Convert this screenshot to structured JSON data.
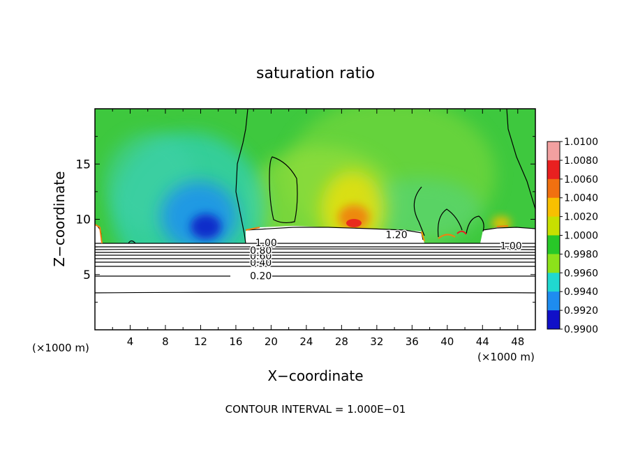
{
  "chart_data": {
    "type": "heatmap",
    "title": "saturation ratio",
    "xlabel": "X−coordinate",
    "ylabel": "Z−coordinate",
    "x_unit": "(×1000 m)",
    "z_unit": "(×1000 m)",
    "xlim": [
      0,
      50
    ],
    "ylim": [
      0,
      20
    ],
    "x_ticks": [
      "4",
      "8",
      "12",
      "16",
      "20",
      "24",
      "28",
      "32",
      "36",
      "40",
      "44",
      "48"
    ],
    "y_ticks": [
      "5",
      "10",
      "15"
    ],
    "footer": "CONTOUR INTERVAL = 1.000E−01",
    "contour_labels": [
      {
        "text": "0.20",
        "x": 17.6,
        "z": 4.9
      },
      {
        "text": "0.40",
        "x": 17.6,
        "z": 6.1
      },
      {
        "text": "0.60",
        "x": 17.6,
        "z": 6.7
      },
      {
        "text": "0.80",
        "x": 17.6,
        "z": 7.2
      },
      {
        "text": "1.00",
        "x": 18.2,
        "z": 7.9
      },
      {
        "text": "1.20",
        "x": 33.0,
        "z": 8.6
      },
      {
        "text": "1.00",
        "x": 46.0,
        "z": 7.6
      }
    ],
    "colorbar": {
      "labels": [
        "1.0100",
        "1.0080",
        "1.0060",
        "1.0040",
        "1.0020",
        "1.0000",
        "0.9980",
        "0.9960",
        "0.9940",
        "0.9920",
        "0.9900"
      ],
      "colors": [
        "#f2a0a0",
        "#e82020",
        "#f07010",
        "#f8c000",
        "#c8e000",
        "#28c828",
        "#8ce21a",
        "#20d8d0",
        "#1e8cf0",
        "#1010c8",
        "#6010a0"
      ]
    },
    "background_color": "#3ec83e"
  }
}
